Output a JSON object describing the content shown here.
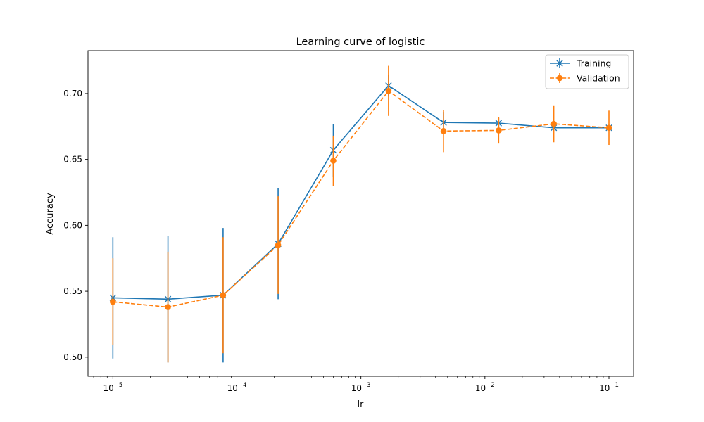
{
  "chart_data": {
    "type": "line",
    "title": "Learning curve of logistic",
    "xlabel": "lr",
    "ylabel": "Accuracy",
    "xscale": "log",
    "xlim": [
      6.3e-06,
      0.158
    ],
    "ylim": [
      0.4855,
      0.7325
    ],
    "grid": false,
    "legend_position": "top-right",
    "x": [
      1e-05,
      2.78e-05,
      7.74e-05,
      0.000215,
      0.000599,
      0.00167,
      0.00464,
      0.0129,
      0.0359,
      0.1
    ],
    "x_ticks": [
      {
        "value": 1e-05,
        "base": "10",
        "exp": "−5"
      },
      {
        "value": 0.0001,
        "base": "10",
        "exp": "−4"
      },
      {
        "value": 0.001,
        "base": "10",
        "exp": "−3"
      },
      {
        "value": 0.01,
        "base": "10",
        "exp": "−2"
      },
      {
        "value": 0.1,
        "base": "10",
        "exp": "−1"
      }
    ],
    "y_ticks": [
      {
        "value": 0.5,
        "label": "0.50"
      },
      {
        "value": 0.55,
        "label": "0.55"
      },
      {
        "value": 0.6,
        "label": "0.60"
      },
      {
        "value": 0.65,
        "label": "0.65"
      },
      {
        "value": 0.7,
        "label": "0.70"
      }
    ],
    "series": [
      {
        "name": "Training",
        "color": "#1f77b4",
        "marker": "x",
        "linestyle": "solid",
        "values": [
          0.545,
          0.544,
          0.547,
          0.586,
          0.657,
          0.706,
          0.678,
          0.6775,
          0.674,
          0.674
        ],
        "errors": [
          0.046,
          0.048,
          0.051,
          0.042,
          0.02,
          0.008,
          0.008,
          0.004,
          0.002,
          0.002
        ]
      },
      {
        "name": "Validation",
        "color": "#ff7f0e",
        "marker": "o",
        "linestyle": "dashed",
        "values": [
          0.542,
          0.538,
          0.547,
          0.585,
          0.649,
          0.702,
          0.6715,
          0.672,
          0.677,
          0.674
        ],
        "errors": [
          0.033,
          0.042,
          0.044,
          0.037,
          0.019,
          0.019,
          0.016,
          0.01,
          0.014,
          0.013
        ]
      }
    ]
  }
}
